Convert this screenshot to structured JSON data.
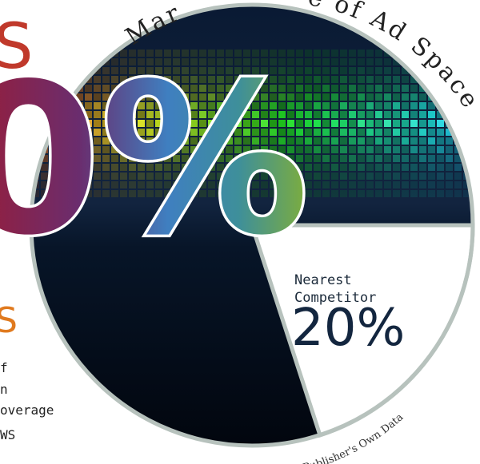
{
  "header": {
    "top_left_letter": "S",
    "big_figure": "0%"
  },
  "arc_title": {
    "left_part": "Mar",
    "right_part": "e of Ad Space"
  },
  "slice": {
    "label": "Nearest\nCompetitor",
    "label_lines": [
      "Nearest",
      "Competitor"
    ],
    "value": "20%"
  },
  "left_block": {
    "heading_letter": "S",
    "lines": [
      "f",
      "n",
      "overage",
      "WS"
    ]
  },
  "source": "Publisher's Own Data"
}
